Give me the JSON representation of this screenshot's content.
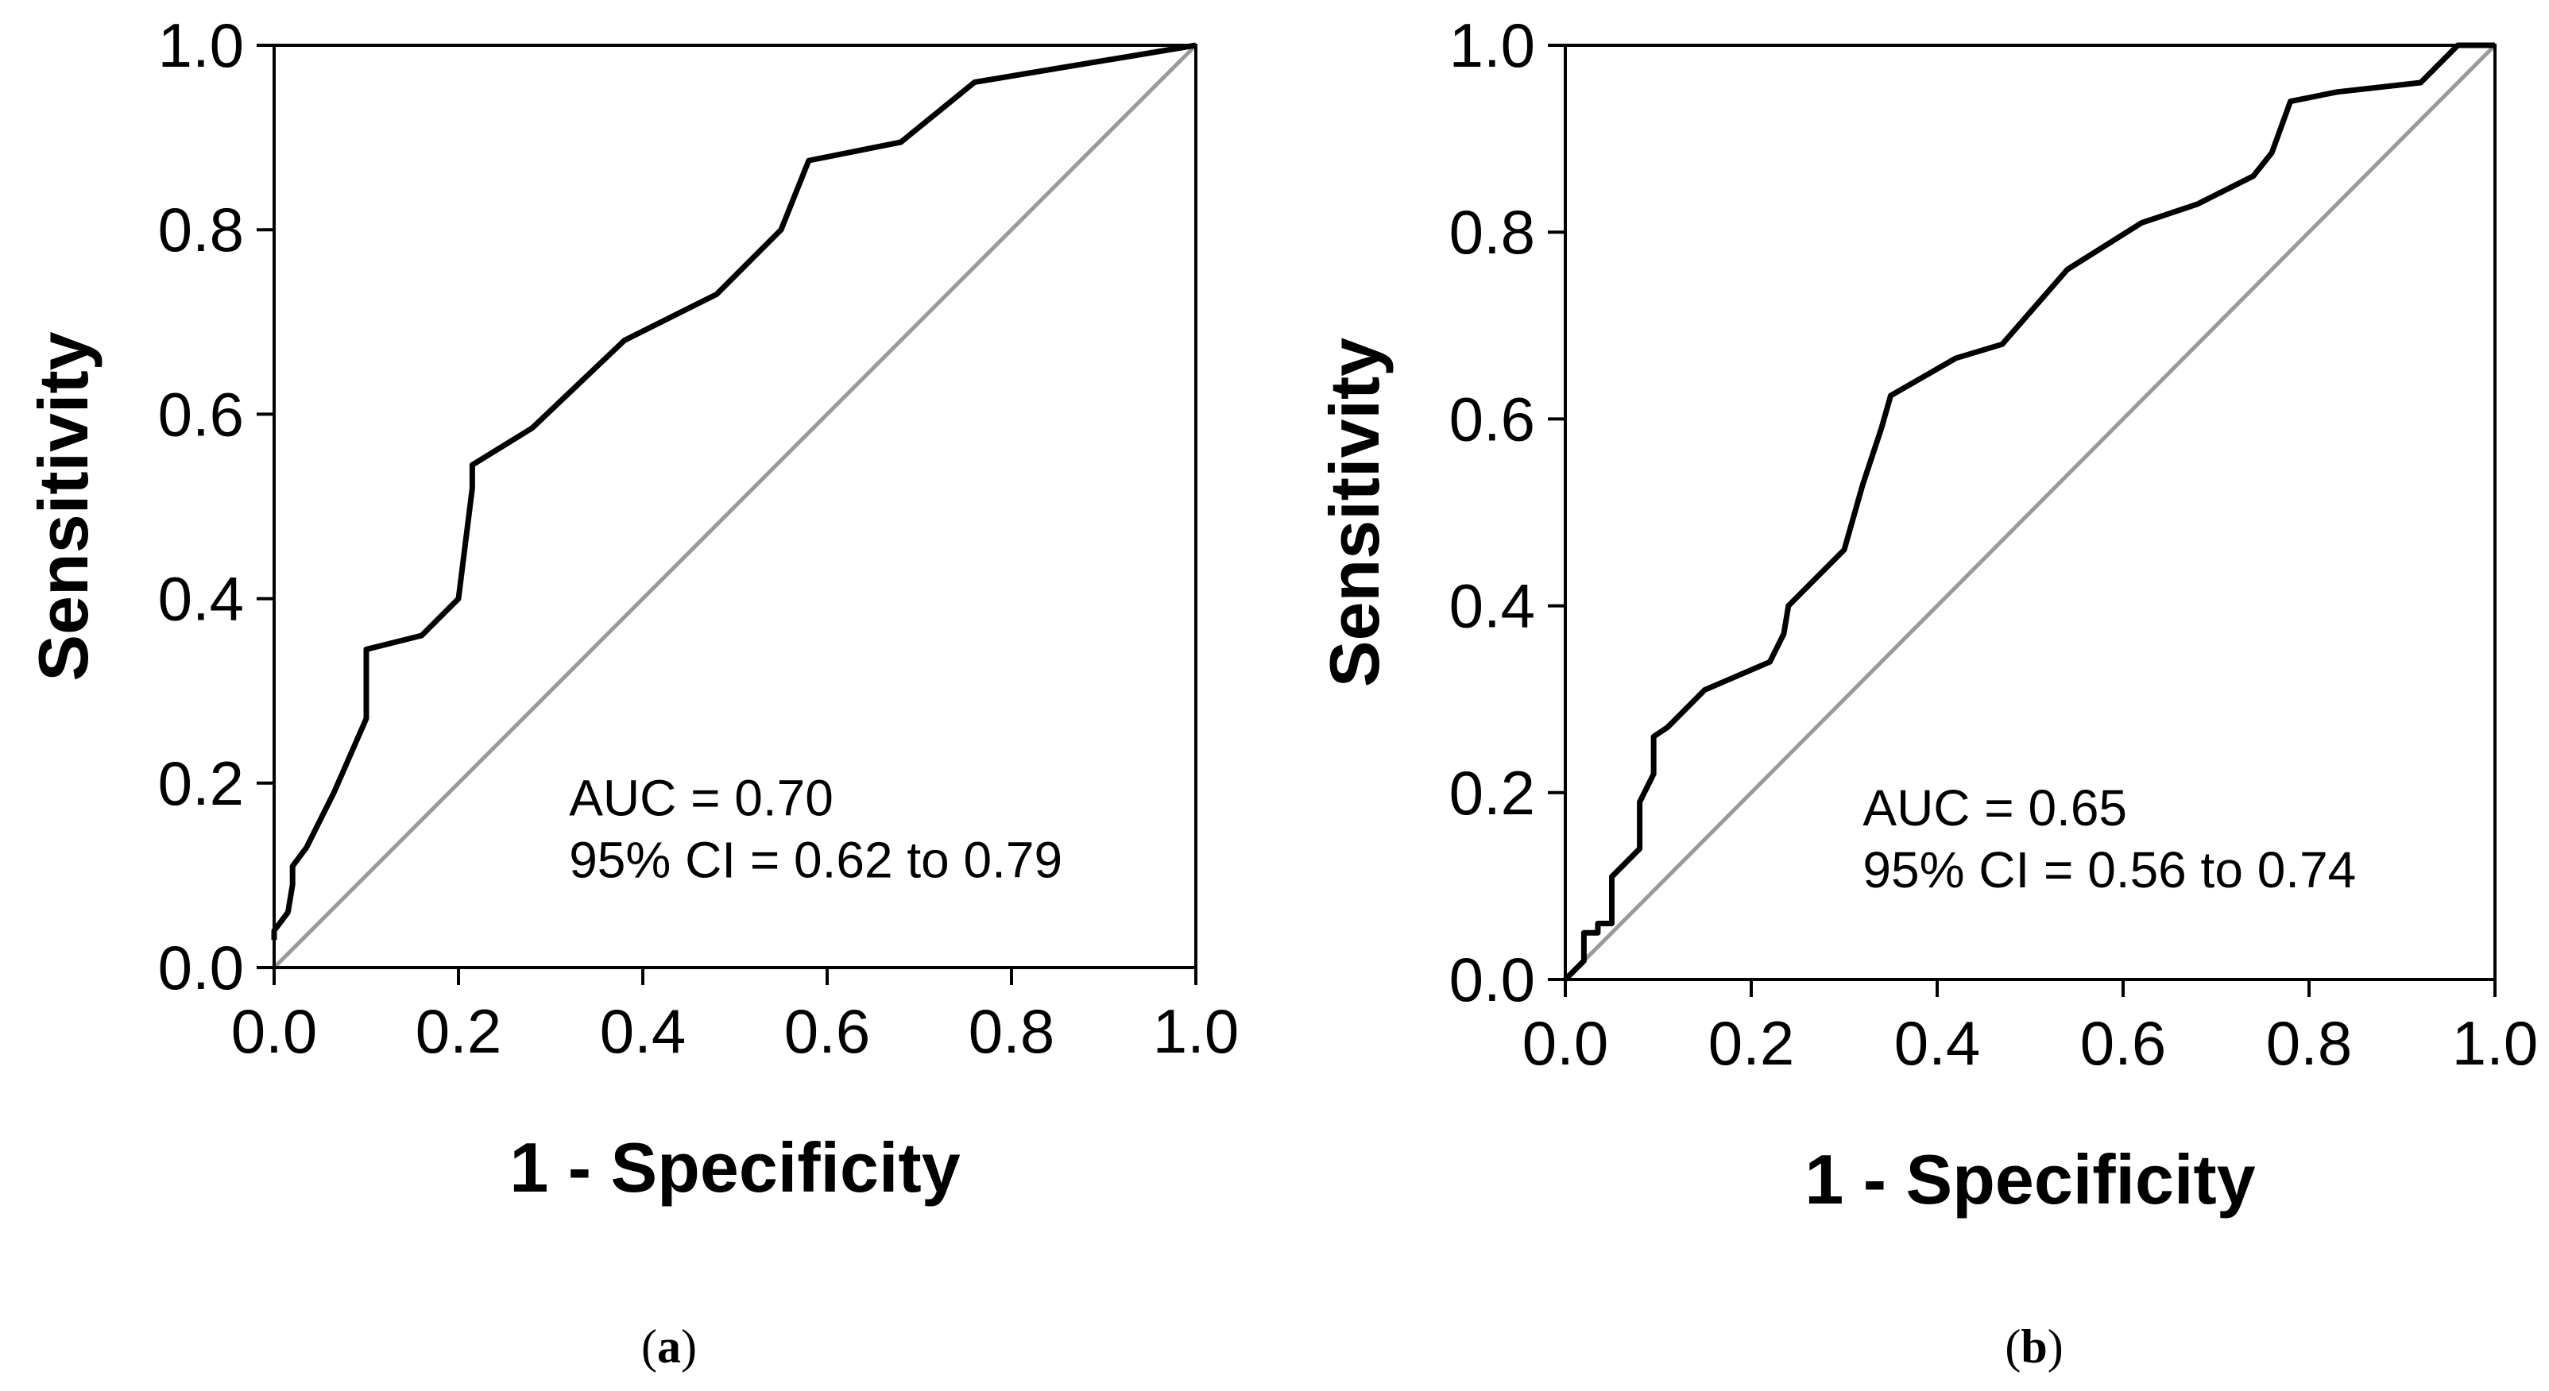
{
  "chart_data": [
    {
      "type": "line",
      "panel_label": "a",
      "xlabel": "1 - Specificity",
      "ylabel": "Sensitivity",
      "xlim": [
        0,
        1
      ],
      "ylim": [
        0,
        1
      ],
      "xticks": [
        "0.0",
        "0.2",
        "0.4",
        "0.6",
        "0.8",
        "1.0"
      ],
      "yticks": [
        "0.0",
        "0.2",
        "0.4",
        "0.6",
        "0.8",
        "1.0"
      ],
      "annotations": [
        "AUC = 0.70",
        "95% CI = 0.62 to 0.79"
      ],
      "colors": {
        "curve": "#000000",
        "reference": "#9a9a9a",
        "frame": "#000000"
      },
      "series": [
        {
          "role": "roc-curve",
          "x": [
            0.0,
            0.0,
            0.015,
            0.02,
            0.02,
            0.035,
            0.065,
            0.1,
            0.1,
            0.16,
            0.17,
            0.2,
            0.21,
            0.215,
            0.215,
            0.28,
            0.38,
            0.48,
            0.55,
            0.58,
            0.68,
            0.76,
            1.0
          ],
          "y": [
            0.03,
            0.04,
            0.06,
            0.09,
            0.11,
            0.13,
            0.19,
            0.27,
            0.345,
            0.36,
            0.37,
            0.4,
            0.48,
            0.52,
            0.545,
            0.585,
            0.68,
            0.73,
            0.8,
            0.875,
            0.895,
            0.96,
            1.0
          ]
        },
        {
          "role": "reference-diagonal",
          "x": [
            0,
            1
          ],
          "y": [
            0,
            1
          ]
        }
      ]
    },
    {
      "type": "line",
      "panel_label": "b",
      "xlabel": "1 - Specificity",
      "ylabel": "Sensitivity",
      "xlim": [
        0,
        1
      ],
      "ylim": [
        0,
        1
      ],
      "xticks": [
        "0.0",
        "0.2",
        "0.4",
        "0.6",
        "0.8",
        "1.0"
      ],
      "yticks": [
        "0.0",
        "0.2",
        "0.4",
        "0.6",
        "0.8",
        "1.0"
      ],
      "annotations": [
        "AUC = 0.65",
        "95% CI = 0.56 to 0.74"
      ],
      "colors": {
        "curve": "#000000",
        "reference": "#9a9a9a",
        "frame": "#000000"
      },
      "series": [
        {
          "role": "roc-curve",
          "x": [
            0.0,
            0.02,
            0.02,
            0.035,
            0.035,
            0.05,
            0.05,
            0.06,
            0.08,
            0.08,
            0.095,
            0.095,
            0.11,
            0.15,
            0.22,
            0.235,
            0.24,
            0.26,
            0.3,
            0.32,
            0.34,
            0.35,
            0.42,
            0.47,
            0.54,
            0.62,
            0.68,
            0.74,
            0.76,
            0.78,
            0.83,
            0.92,
            0.96,
            1.0
          ],
          "y": [
            0.0,
            0.02,
            0.05,
            0.05,
            0.06,
            0.06,
            0.11,
            0.12,
            0.14,
            0.19,
            0.22,
            0.26,
            0.27,
            0.31,
            0.34,
            0.37,
            0.4,
            0.42,
            0.46,
            0.53,
            0.59,
            0.625,
            0.665,
            0.68,
            0.76,
            0.81,
            0.83,
            0.86,
            0.885,
            0.94,
            0.95,
            0.96,
            1.0,
            1.0
          ]
        },
        {
          "role": "reference-diagonal",
          "x": [
            0,
            1
          ],
          "y": [
            0,
            1
          ]
        }
      ]
    }
  ]
}
